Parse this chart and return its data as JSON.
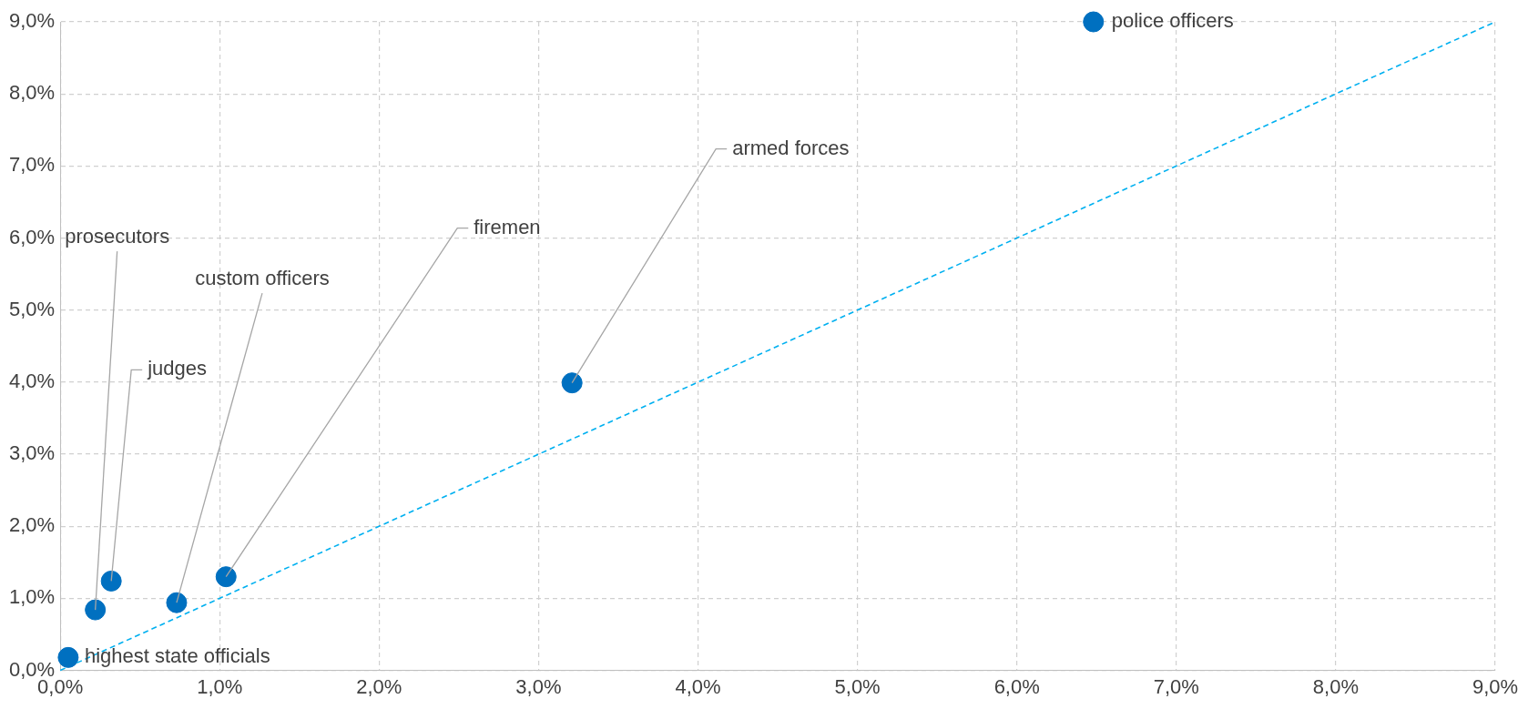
{
  "chart_data": {
    "type": "scatter",
    "series": [
      {
        "color": "#0070c0",
        "x": [
          6.48,
          3.21,
          1.04,
          0.73,
          0.32,
          0.22,
          0.05
        ],
        "values": [
          9.0,
          3.99,
          1.3,
          0.94,
          1.24,
          0.84,
          0.18
        ]
      },
      {
        "type": "line",
        "color": "#00b0f0",
        "x": [
          0,
          9
        ],
        "values": [
          0,
          9
        ],
        "line_style": "dashed",
        "marker": "none"
      }
    ],
    "marker": "circle",
    "xlim": [
      0,
      9
    ],
    "ylim": [
      0,
      9
    ],
    "xticks": [
      {
        "value": 0,
        "label": "0,0%"
      },
      {
        "value": 1,
        "label": "1,0%"
      },
      {
        "value": 2,
        "label": "2,0%"
      },
      {
        "value": 3,
        "label": "3,0%"
      },
      {
        "value": 4,
        "label": "4,0%"
      },
      {
        "value": 5,
        "label": "5,0%"
      },
      {
        "value": 6,
        "label": "6,0%"
      },
      {
        "value": 7,
        "label": "7,0%"
      },
      {
        "value": 8,
        "label": "8,0%"
      },
      {
        "value": 9,
        "label": "9,0%"
      }
    ],
    "yticks": [
      {
        "value": 0,
        "label": "0,0%"
      },
      {
        "value": 1,
        "label": "1,0%"
      },
      {
        "value": 2,
        "label": "2,0%"
      },
      {
        "value": 3,
        "label": "3,0%"
      },
      {
        "value": 4,
        "label": "4,0%"
      },
      {
        "value": 5,
        "label": "5,0%"
      },
      {
        "value": 6,
        "label": "6,0%"
      },
      {
        "value": 7,
        "label": "7,0%"
      },
      {
        "value": 8,
        "label": "8,0%"
      },
      {
        "value": 9,
        "label": "9,0%"
      }
    ],
    "grid": true,
    "legend": false,
    "annotations": [
      {
        "text": "police officers",
        "x": 6.48,
        "y": 9.0
      },
      {
        "text": "armed forces",
        "x": 3.21,
        "y": 3.99
      },
      {
        "text": "firemen",
        "x": 1.04,
        "y": 1.3
      },
      {
        "text": "custom officers",
        "x": 0.73,
        "y": 0.94
      },
      {
        "text": "judges",
        "x": 0.32,
        "y": 1.24
      },
      {
        "text": "prosecutors",
        "x": 0.22,
        "y": 0.84
      },
      {
        "text": "highest state officials",
        "x": 0.05,
        "y": 0.18
      }
    ]
  }
}
